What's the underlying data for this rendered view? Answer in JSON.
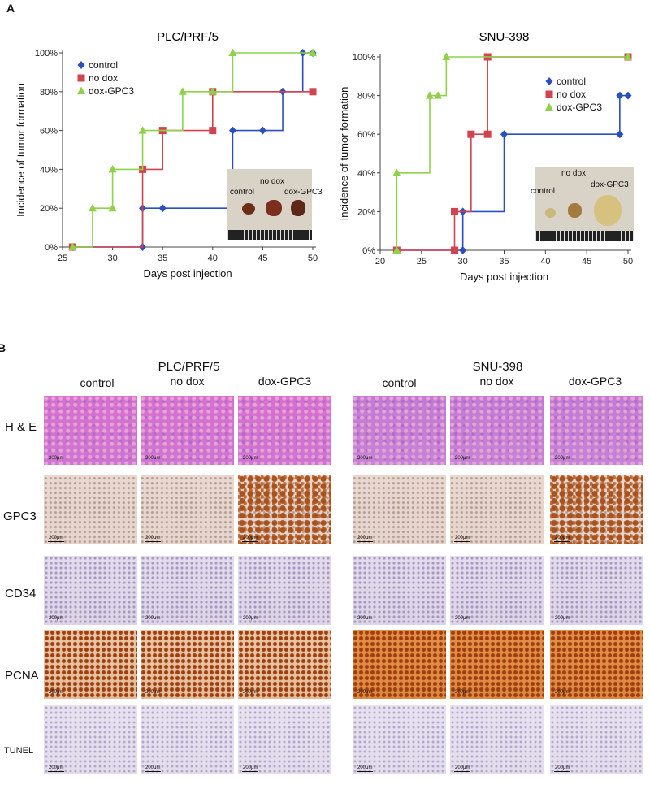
{
  "panel_a_label": "A",
  "panel_b_label": "B",
  "colors": {
    "control": "#2a4fc0",
    "no_dox": "#d2434f",
    "dox_gpc3": "#8fd24a"
  },
  "chart_data": [
    {
      "type": "line",
      "step": true,
      "title": "PLC/PRF/5",
      "xlabel": "Days post injection",
      "ylabel": "Incidence of tumor formation",
      "xlim": [
        25,
        50
      ],
      "ylim": [
        0,
        100
      ],
      "xticks": [
        "25",
        "30",
        "35",
        "40",
        "45",
        "50"
      ],
      "yticks": [
        "0%",
        "20%",
        "40%",
        "60%",
        "80%",
        "100%"
      ],
      "legend_position": "top-left",
      "series": [
        {
          "name": "control",
          "marker": "diamond",
          "x": [
            26,
            33,
            33,
            35,
            42,
            45,
            47,
            49,
            50
          ],
          "y": [
            0,
            0,
            20,
            20,
            60,
            60,
            80,
            100,
            100
          ]
        },
        {
          "name": "no dox",
          "marker": "square",
          "x": [
            26,
            33,
            35,
            40,
            40,
            50
          ],
          "y": [
            0,
            40,
            60,
            60,
            80,
            80
          ]
        },
        {
          "name": "dox-GPC3",
          "marker": "triangle",
          "x": [
            26,
            28,
            30,
            30,
            33,
            37,
            40,
            42,
            50
          ],
          "y": [
            0,
            20,
            20,
            40,
            60,
            80,
            80,
            100,
            100
          ]
        }
      ],
      "inset": {
        "labels": [
          "control",
          "no dox",
          "dox-GPC3"
        ]
      }
    },
    {
      "type": "line",
      "step": true,
      "title": "SNU-398",
      "xlabel": "Days post injection",
      "ylabel": "Incidence of tumor formation",
      "xlim": [
        20,
        50
      ],
      "ylim": [
        0,
        100
      ],
      "xticks": [
        "20",
        "25",
        "30",
        "35",
        "40",
        "45",
        "50"
      ],
      "yticks": [
        "0%",
        "20%",
        "40%",
        "60%",
        "80%",
        "100%"
      ],
      "legend_position": "center-right",
      "series": [
        {
          "name": "control",
          "marker": "diamond",
          "x": [
            22,
            30,
            30,
            35,
            49,
            49,
            50
          ],
          "y": [
            0,
            0,
            20,
            60,
            60,
            80,
            80
          ]
        },
        {
          "name": "no dox",
          "marker": "square",
          "x": [
            22,
            29,
            29,
            31,
            33,
            33,
            50
          ],
          "y": [
            0,
            0,
            20,
            60,
            60,
            100,
            100
          ]
        },
        {
          "name": "dox-GPC3",
          "marker": "triangle",
          "x": [
            22,
            22,
            26,
            27,
            28,
            50
          ],
          "y": [
            0,
            40,
            80,
            80,
            100,
            100
          ]
        }
      ],
      "inset": {
        "labels": [
          "control",
          "no dox",
          "dox-GPC3"
        ]
      }
    }
  ],
  "histology": {
    "groups": [
      {
        "title": "PLC/PRF/5",
        "columns": [
          "control",
          "no dox",
          "dox-GPC3"
        ]
      },
      {
        "title": "SNU-398",
        "columns": [
          "control",
          "no dox",
          "dox-GPC3"
        ]
      }
    ],
    "rows": [
      "H & E",
      "GPC3",
      "CD34",
      "PCNA",
      "TUNEL"
    ],
    "scale_bar": "200μm"
  }
}
